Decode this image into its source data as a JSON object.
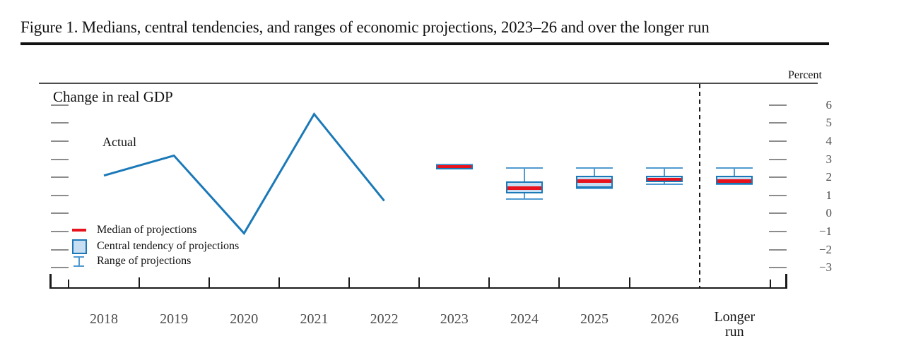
{
  "figure": {
    "title": "Figure 1.  Medians, central tendencies, and ranges of economic projections, 2023–26 and over the longer run"
  },
  "legend": [
    {
      "key": "median",
      "label": "Median of projections"
    },
    {
      "key": "central_tendency",
      "label": "Central tendency of projections"
    },
    {
      "key": "range",
      "label": "Range of projections"
    }
  ],
  "colors": {
    "line_blue": "#1b79b8",
    "range_blue": "#4f9ad0",
    "ct_fill": "#c8def2",
    "median_red": "#e8121c",
    "tick_gray": "#8c8c8c",
    "axis_black": "#1a1a1a",
    "label_gray": "#4d4d4d",
    "ink": "#111111"
  },
  "chart_data": {
    "type": "line+boxplot",
    "title": "Change in real GDP",
    "unit": "Percent",
    "legend_position": "bottom-left inside plot",
    "grid": false,
    "x_categories": [
      "2018",
      "2019",
      "2020",
      "2021",
      "2022",
      "2023",
      "2024",
      "2025",
      "2026",
      "Longer run"
    ],
    "separator_after": "2026",
    "ylim": [
      -3,
      6
    ],
    "y_tick_values": [
      6,
      5,
      4,
      3,
      2,
      1,
      0,
      -1,
      -2,
      -3
    ],
    "y_tick_labels": [
      "6",
      "5",
      "4",
      "3",
      "2",
      "1",
      "0",
      "−1",
      "−2",
      "−3"
    ],
    "actual_line": {
      "label": "Actual",
      "years": [
        2018,
        2019,
        2020,
        2021,
        2022
      ],
      "values": [
        2.1,
        3.2,
        -1.1,
        5.5,
        0.7
      ]
    },
    "projections": [
      {
        "period": "2023",
        "median": 2.6,
        "central_tendency": [
          2.5,
          2.6
        ],
        "range": [
          2.5,
          2.7
        ]
      },
      {
        "period": "2024",
        "median": 1.4,
        "central_tendency": [
          1.2,
          1.7
        ],
        "range": [
          0.8,
          2.5
        ]
      },
      {
        "period": "2025",
        "median": 1.8,
        "central_tendency": [
          1.5,
          2.0
        ],
        "range": [
          1.4,
          2.5
        ]
      },
      {
        "period": "2026",
        "median": 1.9,
        "central_tendency": [
          1.8,
          2.0
        ],
        "range": [
          1.6,
          2.5
        ]
      },
      {
        "period": "Longer run",
        "median": 1.8,
        "central_tendency": [
          1.7,
          2.0
        ],
        "range": [
          1.6,
          2.5
        ]
      }
    ]
  }
}
